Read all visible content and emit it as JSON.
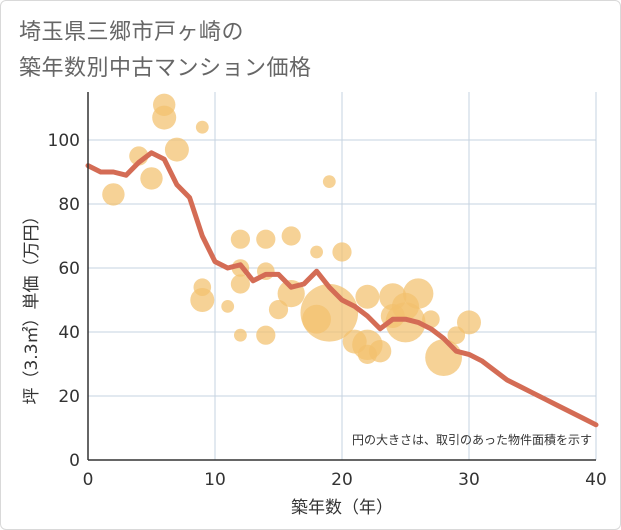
{
  "title_line1": "埼玉県三郷市戸ヶ崎の",
  "title_line2": "築年数別中古マンション価格",
  "chart_data": {
    "type": "scatter",
    "xlabel": "築年数（年）",
    "ylabel": "坪（3.3㎡）単価（万円）",
    "xlim": [
      0,
      40
    ],
    "ylim": [
      0,
      115
    ],
    "xticks": [
      0,
      10,
      20,
      30,
      40
    ],
    "yticks": [
      0,
      20,
      40,
      60,
      80,
      100
    ],
    "grid": true,
    "note": "円の大きさは、取引のあった物件面積を示す",
    "colors": {
      "bubble": "#f3c16e",
      "line": "#d46c55",
      "grid": "#c5d3e0",
      "axis": "#333333"
    },
    "bubbles": [
      {
        "x": 2,
        "y": 83,
        "size": 0.45
      },
      {
        "x": 4,
        "y": 95,
        "size": 0.35
      },
      {
        "x": 5,
        "y": 88,
        "size": 0.45
      },
      {
        "x": 6,
        "y": 111,
        "size": 0.45
      },
      {
        "x": 6,
        "y": 107,
        "size": 0.5
      },
      {
        "x": 7,
        "y": 97,
        "size": 0.5
      },
      {
        "x": 9,
        "y": 104,
        "size": 0.15
      },
      {
        "x": 9,
        "y": 54,
        "size": 0.3
      },
      {
        "x": 9,
        "y": 50,
        "size": 0.5
      },
      {
        "x": 11,
        "y": 48,
        "size": 0.15
      },
      {
        "x": 12,
        "y": 69,
        "size": 0.35
      },
      {
        "x": 12,
        "y": 60,
        "size": 0.3
      },
      {
        "x": 12,
        "y": 55,
        "size": 0.35
      },
      {
        "x": 12,
        "y": 39,
        "size": 0.15
      },
      {
        "x": 14,
        "y": 69,
        "size": 0.35
      },
      {
        "x": 14,
        "y": 59,
        "size": 0.3
      },
      {
        "x": 14,
        "y": 39,
        "size": 0.35
      },
      {
        "x": 15,
        "y": 47,
        "size": 0.35
      },
      {
        "x": 16,
        "y": 70,
        "size": 0.35
      },
      {
        "x": 16,
        "y": 52,
        "size": 0.6
      },
      {
        "x": 18,
        "y": 65,
        "size": 0.15
      },
      {
        "x": 18,
        "y": 44,
        "size": 0.65
      },
      {
        "x": 19,
        "y": 87,
        "size": 0.15
      },
      {
        "x": 19,
        "y": 46,
        "size": 1.55
      },
      {
        "x": 20,
        "y": 65,
        "size": 0.35
      },
      {
        "x": 21,
        "y": 37,
        "size": 0.5
      },
      {
        "x": 22,
        "y": 51,
        "size": 0.5
      },
      {
        "x": 22,
        "y": 36,
        "size": 0.7
      },
      {
        "x": 22,
        "y": 33,
        "size": 0.35
      },
      {
        "x": 23,
        "y": 34,
        "size": 0.45
      },
      {
        "x": 24,
        "y": 51,
        "size": 0.6
      },
      {
        "x": 24,
        "y": 45,
        "size": 0.5
      },
      {
        "x": 25,
        "y": 48,
        "size": 0.6
      },
      {
        "x": 25,
        "y": 43,
        "size": 1.0
      },
      {
        "x": 26,
        "y": 52,
        "size": 0.7
      },
      {
        "x": 27,
        "y": 44,
        "size": 0.3
      },
      {
        "x": 28,
        "y": 32,
        "size": 0.9
      },
      {
        "x": 29,
        "y": 39,
        "size": 0.3
      },
      {
        "x": 30,
        "y": 43,
        "size": 0.5
      }
    ],
    "trend": {
      "x": [
        0,
        1,
        2,
        3,
        4,
        5,
        6,
        7,
        8,
        9,
        10,
        11,
        12,
        13,
        14,
        15,
        16,
        17,
        18,
        19,
        20,
        21,
        22,
        23,
        24,
        25,
        26,
        27,
        28,
        29,
        30,
        31,
        32,
        33,
        34,
        35,
        36,
        37,
        38,
        39,
        40
      ],
      "y": [
        92,
        90,
        90,
        89,
        93,
        96,
        94,
        86,
        82,
        70,
        62,
        60,
        61,
        56,
        58,
        58,
        54,
        55,
        59,
        54,
        50,
        48,
        45,
        41,
        44,
        44,
        43,
        41,
        38,
        34,
        33,
        31,
        28,
        25,
        23,
        21,
        19,
        17,
        15,
        13,
        11
      ]
    }
  }
}
